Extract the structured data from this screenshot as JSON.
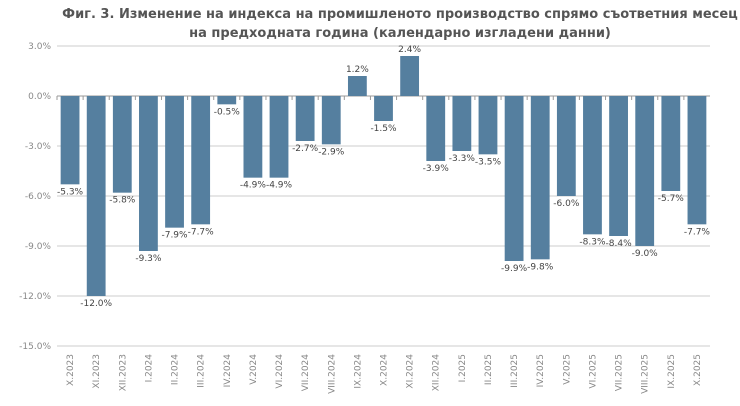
{
  "chart_data": {
    "type": "bar",
    "title": "Фиг. 3. Изменение на индекса на промишленото производство спрямо съответния месец на предходната година (календарно изгладени данни)",
    "xlabel": "",
    "ylabel": "",
    "ylim": [
      -15,
      3
    ],
    "yticks": [
      3,
      0,
      -3,
      -6,
      -9,
      -12,
      -15
    ],
    "ytick_labels": [
      "3.0%",
      "0.0%",
      "-3.0%",
      "-6.0%",
      "-9.0%",
      "-12.0%",
      "-15.0%"
    ],
    "grid": true,
    "bar_color": "#557f9f",
    "categories": [
      "X.2023",
      "XI.2023",
      "XII.2023",
      "I.2024",
      "II.2024",
      "III.2024",
      "IV.2024",
      "V.2024",
      "VI.2024",
      "VII.2024",
      "VIII.2024",
      "IX.2024",
      "X.2024",
      "XI.2024",
      "XII.2024",
      "I.2025",
      "II.2025",
      "III.2025",
      "IV.2025",
      "V.2025",
      "VI.2025",
      "VII.2025",
      "VIII.2025",
      "IX.2025",
      "X.2025"
    ],
    "values": [
      -5.3,
      -12.0,
      -5.8,
      -9.3,
      -7.9,
      -7.7,
      -0.5,
      -4.9,
      -4.9,
      -2.7,
      -2.9,
      1.2,
      -1.5,
      2.4,
      -3.9,
      -3.3,
      -3.5,
      -9.9,
      -9.8,
      -6.0,
      -8.3,
      -8.4,
      -9.0,
      -5.7,
      -7.7
    ],
    "data_labels": [
      "-5.3%",
      "-12.0%",
      "-5.8%",
      "-9.3%",
      "-7.9%",
      "-7.7%",
      "-0.5%",
      "-4.9%",
      "-4.9%",
      "-2.7%",
      "-2.9%",
      "1.2%",
      "-1.5%",
      "2.4%",
      "-3.9%",
      "-3.3%",
      "-3.5%",
      "-9.9%",
      "-9.8%",
      "-6.0%",
      "-8.3%",
      "-8.4%",
      "-9.0%",
      "-5.7%",
      "-7.7%"
    ]
  }
}
